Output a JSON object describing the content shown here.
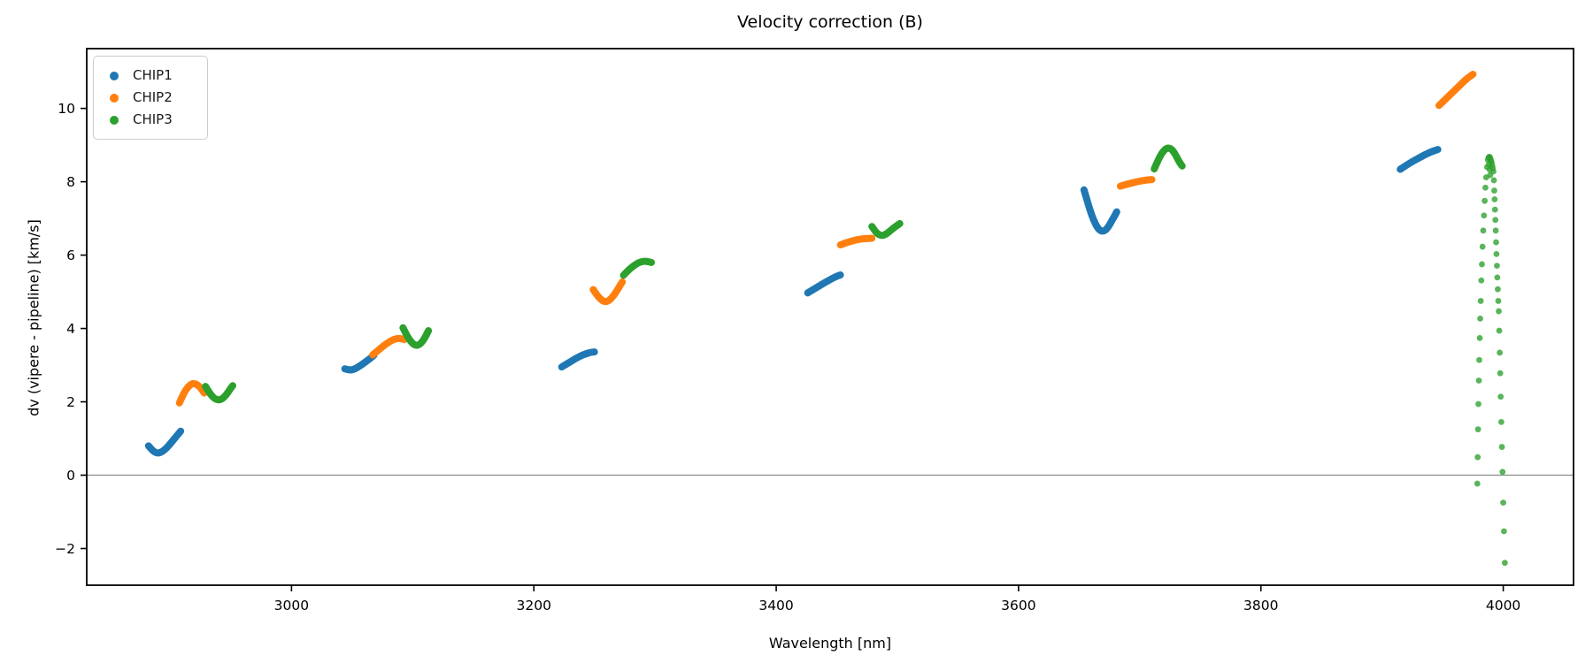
{
  "figure": {
    "title": "Velocity correction (B)"
  },
  "chart_data": {
    "type": "scatter",
    "title": "Velocity correction (B)",
    "xlabel": "Wavelength [nm]",
    "ylabel": "dv (vipere - pipeline) [km/s]",
    "xlim": [
      2831,
      4058
    ],
    "ylim": [
      -3.0,
      11.63
    ],
    "xticks": [
      3000,
      3200,
      3400,
      3600,
      3800,
      4000
    ],
    "yticks": [
      -2,
      0,
      2,
      4,
      6,
      8,
      10
    ],
    "grid": false,
    "zero_line": {
      "y": 0,
      "color": "#8a8a8a"
    },
    "legend": {
      "position": "upper left",
      "entries": [
        "CHIP1",
        "CHIP2",
        "CHIP3"
      ]
    },
    "colors": {
      "CHIP1": "#1f77b4",
      "CHIP2": "#ff7f0e",
      "CHIP3": "#2ca02c"
    },
    "series": [
      {
        "name": "CHIP1",
        "style": "curve",
        "points": [
          [
            2882,
            0.8
          ],
          [
            2884.5,
            0.7
          ],
          [
            2887,
            0.63
          ],
          [
            2889.5,
            0.6
          ],
          [
            2892,
            0.62
          ],
          [
            2895,
            0.68
          ],
          [
            2898,
            0.78
          ],
          [
            2901,
            0.9
          ],
          [
            2904,
            1.02
          ],
          [
            2906.5,
            1.12
          ],
          [
            2908.5,
            1.2
          ]
        ]
      },
      {
        "name": "CHIP1",
        "style": "curve",
        "points": [
          [
            3044,
            2.9
          ],
          [
            3047,
            2.87
          ],
          [
            3050,
            2.87
          ],
          [
            3053,
            2.91
          ],
          [
            3056,
            2.97
          ],
          [
            3060,
            3.06
          ],
          [
            3064,
            3.16
          ],
          [
            3068,
            3.27
          ]
        ]
      },
      {
        "name": "CHIP1",
        "style": "curve",
        "points": [
          [
            3223,
            2.95
          ],
          [
            3227,
            3.03
          ],
          [
            3231,
            3.11
          ],
          [
            3235,
            3.19
          ],
          [
            3239,
            3.26
          ],
          [
            3243,
            3.31
          ],
          [
            3247,
            3.35
          ],
          [
            3250,
            3.36
          ]
        ]
      },
      {
        "name": "CHIP1",
        "style": "curve",
        "points": [
          [
            3426,
            4.97
          ],
          [
            3430,
            5.05
          ],
          [
            3435,
            5.15
          ],
          [
            3440,
            5.25
          ],
          [
            3445,
            5.34
          ],
          [
            3449,
            5.41
          ],
          [
            3453,
            5.46
          ]
        ]
      },
      {
        "name": "CHIP1",
        "style": "curve",
        "points": [
          [
            3654,
            7.78
          ],
          [
            3656.5,
            7.5
          ],
          [
            3659,
            7.22
          ],
          [
            3662,
            6.95
          ],
          [
            3665,
            6.75
          ],
          [
            3668,
            6.65
          ],
          [
            3671,
            6.66
          ],
          [
            3674,
            6.76
          ],
          [
            3677,
            6.94
          ],
          [
            3679.5,
            7.08
          ],
          [
            3681,
            7.18
          ]
        ]
      },
      {
        "name": "CHIP1",
        "style": "curve",
        "points": [
          [
            3915,
            8.34
          ],
          [
            3920,
            8.45
          ],
          [
            3925,
            8.55
          ],
          [
            3930,
            8.64
          ],
          [
            3935,
            8.73
          ],
          [
            3940,
            8.81
          ],
          [
            3946,
            8.88
          ]
        ]
      },
      {
        "name": "CHIP2",
        "style": "curve",
        "points": [
          [
            2907.5,
            1.97
          ],
          [
            2910,
            2.16
          ],
          [
            2912.5,
            2.31
          ],
          [
            2915,
            2.42
          ],
          [
            2917.5,
            2.49
          ],
          [
            2920,
            2.5
          ],
          [
            2922.5,
            2.46
          ],
          [
            2925,
            2.38
          ],
          [
            2928,
            2.24
          ]
        ]
      },
      {
        "name": "CHIP2",
        "style": "curve",
        "points": [
          [
            3067,
            3.28
          ],
          [
            3071,
            3.39
          ],
          [
            3075,
            3.5
          ],
          [
            3079,
            3.6
          ],
          [
            3083,
            3.68
          ],
          [
            3086,
            3.72
          ],
          [
            3089,
            3.73
          ],
          [
            3093,
            3.7
          ]
        ]
      },
      {
        "name": "CHIP2",
        "style": "curve",
        "points": [
          [
            3249,
            5.06
          ],
          [
            3252,
            4.91
          ],
          [
            3255,
            4.8
          ],
          [
            3258,
            4.73
          ],
          [
            3261,
            4.74
          ],
          [
            3264,
            4.82
          ],
          [
            3267,
            4.95
          ],
          [
            3270,
            5.11
          ],
          [
            3273,
            5.27
          ]
        ]
      },
      {
        "name": "CHIP2",
        "style": "curve",
        "points": [
          [
            3453,
            6.28
          ],
          [
            3458,
            6.34
          ],
          [
            3463,
            6.39
          ],
          [
            3468,
            6.43
          ],
          [
            3473,
            6.45
          ],
          [
            3479,
            6.46
          ]
        ]
      },
      {
        "name": "CHIP2",
        "style": "curve",
        "points": [
          [
            3684,
            7.88
          ],
          [
            3689,
            7.93
          ],
          [
            3694,
            7.97
          ],
          [
            3699,
            8.01
          ],
          [
            3704,
            8.04
          ],
          [
            3710,
            8.06
          ]
        ]
      },
      {
        "name": "CHIP2",
        "style": "curve",
        "points": [
          [
            3947,
            10.08
          ],
          [
            3952,
            10.24
          ],
          [
            3957,
            10.4
          ],
          [
            3962,
            10.56
          ],
          [
            3967,
            10.72
          ],
          [
            3971,
            10.84
          ],
          [
            3975,
            10.93
          ]
        ]
      },
      {
        "name": "CHIP3",
        "style": "curve",
        "points": [
          [
            2929,
            2.42
          ],
          [
            2932,
            2.26
          ],
          [
            2935,
            2.13
          ],
          [
            2938,
            2.06
          ],
          [
            2941,
            2.05
          ],
          [
            2944,
            2.11
          ],
          [
            2947,
            2.23
          ],
          [
            2950,
            2.38
          ],
          [
            2951.5,
            2.44
          ]
        ]
      },
      {
        "name": "CHIP3",
        "style": "curve",
        "points": [
          [
            3092,
            4.02
          ],
          [
            3095,
            3.82
          ],
          [
            3098,
            3.66
          ],
          [
            3101,
            3.56
          ],
          [
            3104,
            3.53
          ],
          [
            3107,
            3.6
          ],
          [
            3110,
            3.74
          ],
          [
            3113,
            3.94
          ]
        ]
      },
      {
        "name": "CHIP3",
        "style": "curve",
        "points": [
          [
            3274,
            5.45
          ],
          [
            3278,
            5.59
          ],
          [
            3282,
            5.7
          ],
          [
            3286,
            5.79
          ],
          [
            3290,
            5.83
          ],
          [
            3293,
            5.83
          ],
          [
            3297,
            5.8
          ]
        ]
      },
      {
        "name": "CHIP3",
        "style": "curve",
        "points": [
          [
            3479,
            6.78
          ],
          [
            3482,
            6.63
          ],
          [
            3485,
            6.55
          ],
          [
            3488,
            6.53
          ],
          [
            3491,
            6.58
          ],
          [
            3494,
            6.66
          ],
          [
            3498,
            6.77
          ],
          [
            3502,
            6.86
          ]
        ]
      },
      {
        "name": "CHIP3",
        "style": "curve",
        "points": [
          [
            3712,
            8.35
          ],
          [
            3715,
            8.58
          ],
          [
            3718,
            8.77
          ],
          [
            3721,
            8.89
          ],
          [
            3724,
            8.93
          ],
          [
            3727,
            8.87
          ],
          [
            3730,
            8.71
          ],
          [
            3733,
            8.52
          ],
          [
            3735,
            8.43
          ]
        ]
      },
      {
        "name": "CHIP3",
        "style": "dots",
        "points": [
          [
            3978.6,
            -0.23
          ],
          [
            3978.9,
            0.49
          ],
          [
            3979.2,
            1.25
          ],
          [
            3979.5,
            1.94
          ],
          [
            3979.9,
            2.58
          ],
          [
            3980.2,
            3.14
          ],
          [
            3980.6,
            3.74
          ],
          [
            3981.0,
            4.27
          ],
          [
            3981.4,
            4.75
          ],
          [
            3981.9,
            5.31
          ],
          [
            3982.4,
            5.75
          ],
          [
            3982.9,
            6.23
          ],
          [
            3983.5,
            6.67
          ],
          [
            3984.1,
            7.08
          ],
          [
            3984.7,
            7.48
          ],
          [
            3985.3,
            7.84
          ],
          [
            3985.9,
            8.12
          ],
          [
            3986.6,
            8.4
          ],
          [
            3987.3,
            8.6
          ],
          [
            3987.9,
            8.66
          ],
          [
            3988.4,
            8.68
          ],
          [
            3988.9,
            8.67
          ],
          [
            3989.4,
            8.63
          ],
          [
            3988.2,
            8.48
          ],
          [
            3988.8,
            8.33
          ],
          [
            3989.2,
            8.18
          ],
          [
            3989.9,
            8.58
          ],
          [
            3990.4,
            8.53
          ],
          [
            3990.9,
            8.45
          ],
          [
            3991.4,
            8.37
          ],
          [
            3991.9,
            8.28
          ],
          [
            3992.3,
            8.04
          ],
          [
            3992.6,
            7.76
          ],
          [
            3992.9,
            7.52
          ],
          [
            3993.2,
            7.24
          ],
          [
            3993.5,
            6.96
          ],
          [
            3993.8,
            6.67
          ],
          [
            3994.1,
            6.35
          ],
          [
            3994.4,
            6.03
          ],
          [
            3994.8,
            5.71
          ],
          [
            3995.1,
            5.39
          ],
          [
            3995.5,
            5.07
          ],
          [
            3995.9,
            4.75
          ],
          [
            3996.3,
            4.47
          ],
          [
            3996.7,
            3.94
          ],
          [
            3997.1,
            3.34
          ],
          [
            3997.5,
            2.78
          ],
          [
            3997.9,
            2.14
          ],
          [
            3998.4,
            1.45
          ],
          [
            3998.9,
            0.77
          ],
          [
            3999.4,
            0.09
          ],
          [
            4000.0,
            -0.75
          ],
          [
            4000.6,
            -1.53
          ],
          [
            4001.3,
            -2.39
          ]
        ]
      }
    ]
  }
}
